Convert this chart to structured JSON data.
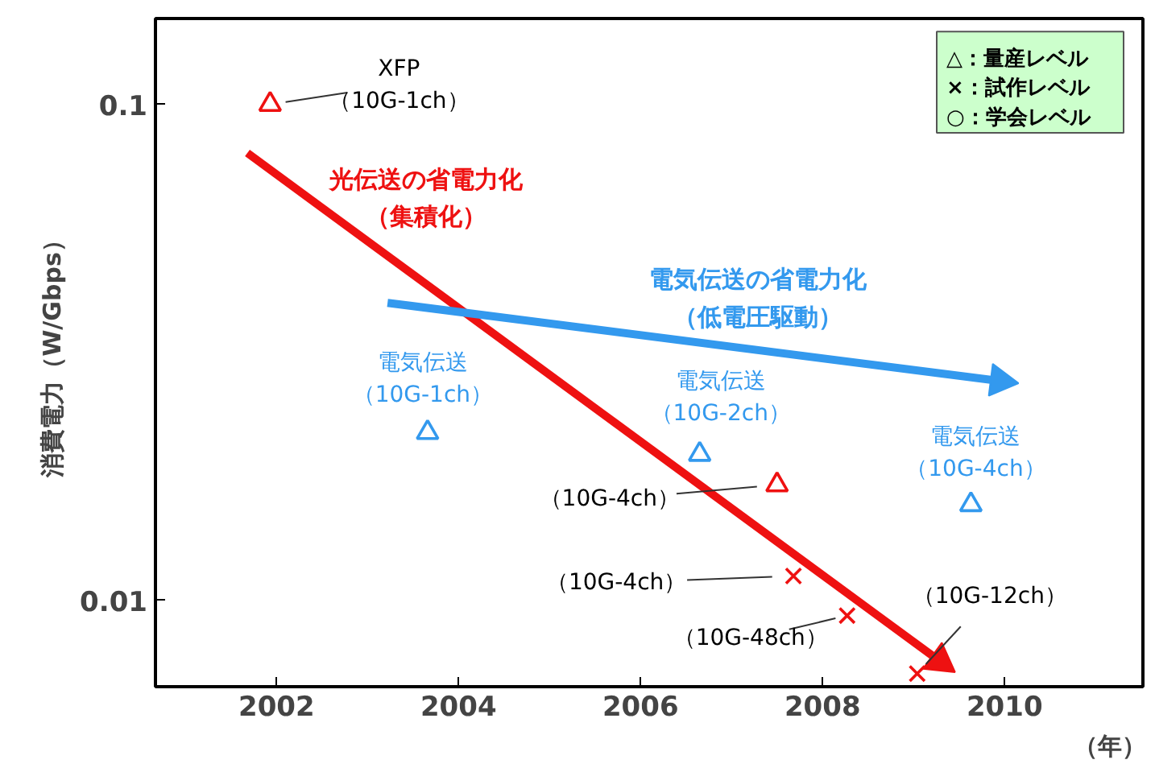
{
  "chart_data": {
    "type": "scatter",
    "xlabel": "（年）",
    "ylabel": "消費電力（W/Gbps）",
    "xlim": [
      2000.67,
      2011.52
    ],
    "ylim": [
      0.0067,
      0.149
    ],
    "log": true,
    "xticks": [
      2002,
      2004,
      2006,
      2008,
      2010
    ],
    "yticks": [
      0.01,
      0.1
    ],
    "grid": false,
    "annotations": [
      "△：量産レベル",
      "×：試作レベル",
      "○：学会レベル"
    ],
    "series": [
      {
        "name": "光伝送の省電力化（集積化）",
        "type": "line",
        "color": "#ee1111",
        "x": [
          2001.68,
          2009.29
        ],
        "values": [
          0.0798,
          0.00754
        ]
      },
      {
        "name": "電気伝送の省電力化（低電圧駆動）",
        "type": "line",
        "color": "#3399ee",
        "x": [
          2003.22,
          2009.95
        ],
        "values": [
          0.0398,
          0.0277
        ]
      },
      {
        "marker": "triangle",
        "x": [
          2001.93,
          2003.66,
          2006.65,
          2009.63,
          2007.5
        ],
        "values": [
          0.1,
          0.0218,
          0.0197,
          0.0156,
          0.0171
        ],
        "colors": [
          "#ee1111",
          "#3399ee",
          "#3399ee",
          "#3399ee",
          "#ee1111"
        ],
        "value_labels": [
          "XFP（10G-1ch）",
          "電気伝送（10G-1ch）",
          "電気伝送（10G-2ch）",
          "電気伝送（10G-4ch）",
          "（10G-4ch）"
        ]
      },
      {
        "marker": "cross",
        "x": [
          2007.68,
          2008.27,
          2009.04
        ],
        "values": [
          0.0112,
          0.00932,
          0.00712
        ],
        "colors": [
          "#ee1111",
          "#ee1111",
          "#ee1111"
        ],
        "value_labels": [
          "（10G-4ch）",
          "（10G-48ch）",
          "（10G-12ch）"
        ]
      }
    ]
  }
}
